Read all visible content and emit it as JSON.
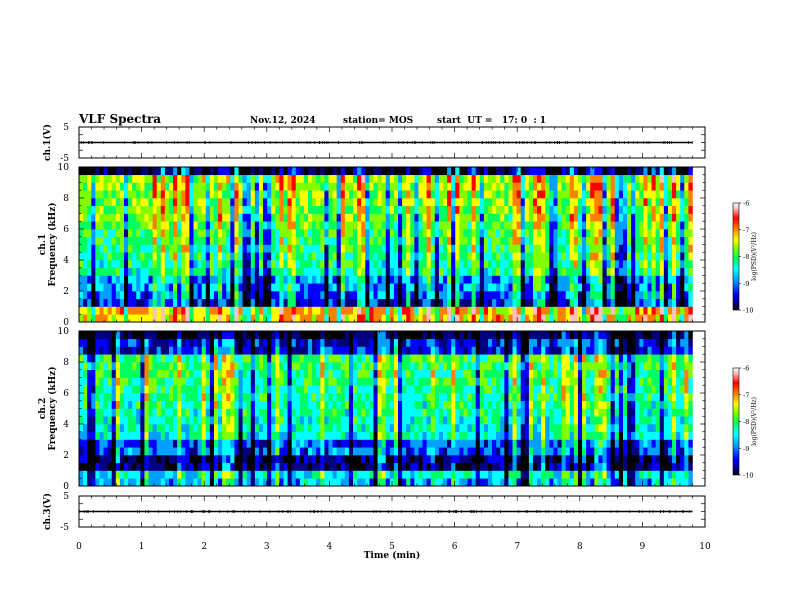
{
  "header": {
    "title": "VLF Spectra",
    "date": "Nov.12, 2024",
    "station": "station= MOS",
    "start_ut": "start  UT =   17: 0  : 1"
  },
  "colors": {
    "colormap": [
      "#000000",
      "#000080",
      "#0000ff",
      "#00a0ff",
      "#00ffff",
      "#00ff60",
      "#80ff00",
      "#ffff00",
      "#ff8000",
      "#ff0000",
      "#ffc0c0",
      "#ffffff"
    ]
  },
  "chart_data": [
    {
      "type": "line",
      "id": "ch1-voltage",
      "ylabel": "ch.1(V)",
      "ylim": [
        -5,
        5
      ],
      "yticks": [
        "5",
        "-5"
      ],
      "series": [
        {
          "x": [
            0,
            9.8
          ],
          "values": [
            0,
            0
          ]
        }
      ]
    },
    {
      "type": "heatmap",
      "id": "ch1-spectrogram",
      "ylabel": "ch.1\nFrequency (kHz)",
      "ylim": [
        0,
        10
      ],
      "yticks": [
        "0",
        "2",
        "4",
        "6",
        "8",
        "10"
      ],
      "xlim": [
        0,
        9.8
      ],
      "colorbar": {
        "label": "log(PSD)(V²/Hz)",
        "ticks": [
          "-6",
          "-7",
          "-8",
          "-9",
          "-10"
        ],
        "range": [
          -10,
          -6
        ]
      }
    },
    {
      "type": "heatmap",
      "id": "ch2-spectrogram",
      "ylabel": "ch.2\nFrequency (kHz)",
      "ylim": [
        0,
        10
      ],
      "yticks": [
        "0",
        "2",
        "4",
        "6",
        "8",
        "10"
      ],
      "xlim": [
        0,
        9.8
      ],
      "colorbar": {
        "label": "log(PSD)(V²/Hz)",
        "ticks": [
          "-6",
          "-7",
          "-8",
          "-9",
          "-10"
        ],
        "range": [
          -10,
          -6
        ]
      }
    },
    {
      "type": "line",
      "id": "ch3-voltage",
      "ylabel": "ch.3(V)",
      "ylim": [
        -5,
        5
      ],
      "yticks": [
        "5",
        "-5"
      ],
      "series": [
        {
          "x": [
            0,
            9.8
          ],
          "values": [
            0,
            0
          ]
        }
      ]
    }
  ],
  "x_axis": {
    "label": "Time  (min)",
    "xlim": [
      0,
      10
    ],
    "ticks": [
      "0",
      "1",
      "2",
      "3",
      "4",
      "5",
      "6",
      "7",
      "8",
      "9",
      "10"
    ]
  }
}
